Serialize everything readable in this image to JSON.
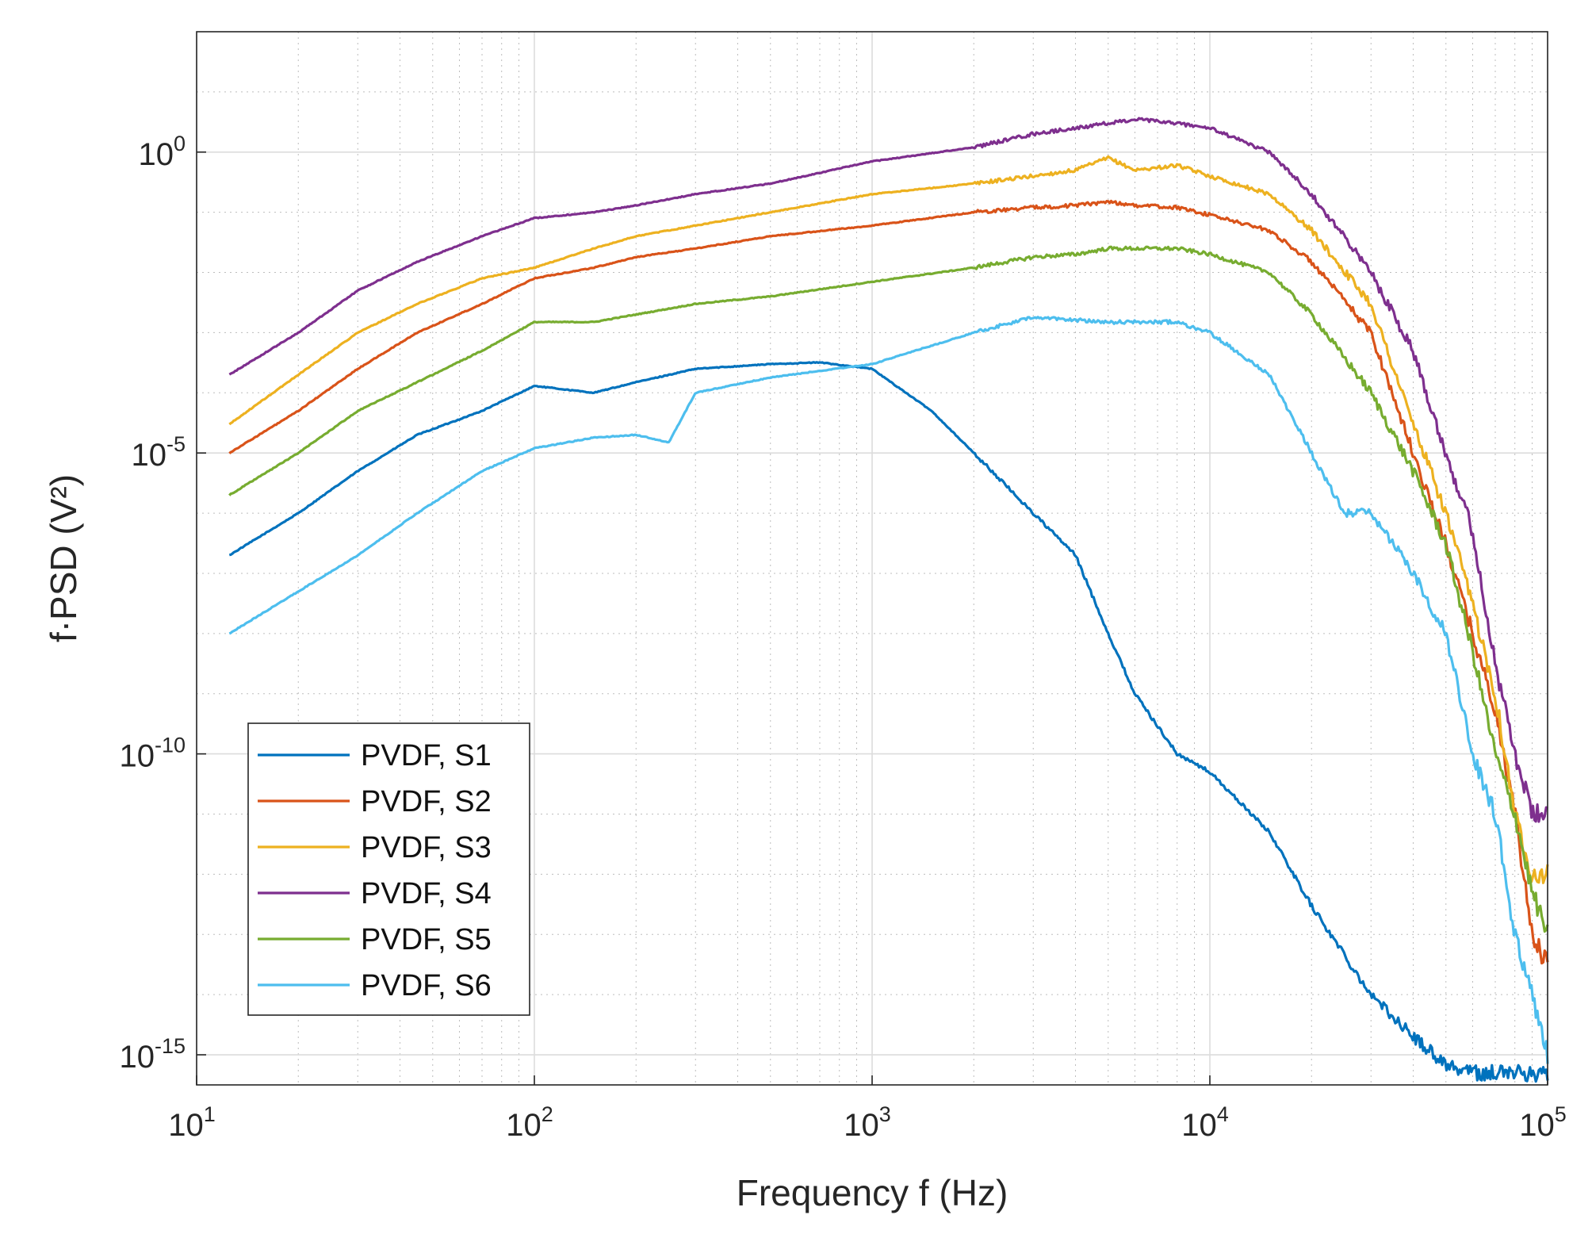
{
  "chart_data": {
    "type": "line",
    "title": "",
    "xlabel": "Frequency f (Hz)",
    "ylabel": "f·PSD (V²)",
    "x_scale": "log",
    "y_scale": "log",
    "xlim": [
      10,
      100000
    ],
    "ylim": [
      3.16e-16,
      100.0
    ],
    "x_ticks": [
      {
        "base": "10",
        "exp": "1"
      },
      {
        "base": "10",
        "exp": "2"
      },
      {
        "base": "10",
        "exp": "3"
      },
      {
        "base": "10",
        "exp": "4"
      },
      {
        "base": "10",
        "exp": "5"
      }
    ],
    "y_ticks": [
      {
        "base": "10",
        "exp": "-15"
      },
      {
        "base": "10",
        "exp": "-10"
      },
      {
        "base": "10",
        "exp": "-5"
      },
      {
        "base": "10",
        "exp": "0"
      }
    ],
    "x_tick_values": [
      10,
      100,
      1000,
      10000,
      100000
    ],
    "y_tick_values": [
      1e-15,
      1e-10,
      1e-05,
      1
    ],
    "grid": true,
    "minor_grid": true,
    "legend_position": "bottom-left",
    "series": [
      {
        "name": "PVDF, S1",
        "color": "#0072BD",
        "x": [
          12.5,
          20,
          30,
          45,
          70,
          100,
          150,
          200,
          300,
          500,
          700,
          1000,
          1500,
          2000,
          3000,
          4000,
          5000,
          6000,
          8000,
          10000,
          15000,
          20000,
          30000,
          40000,
          50000,
          60000,
          70000,
          80000,
          90000,
          100000
        ],
        "y": [
          2e-07,
          1e-06,
          5e-06,
          2e-05,
          5e-05,
          0.00013,
          0.0001,
          0.00015,
          0.00025,
          0.0003,
          0.00032,
          0.00025,
          5e-05,
          1e-05,
          1e-06,
          2e-07,
          1e-08,
          1e-09,
          1e-10,
          5e-11,
          5e-12,
          3e-13,
          1e-14,
          2e-15,
          7e-16,
          5e-16,
          5e-16,
          5e-16,
          5e-16,
          5e-16
        ]
      },
      {
        "name": "PVDF, S2",
        "color": "#D95319",
        "x": [
          12.5,
          20,
          30,
          45,
          70,
          100,
          150,
          200,
          300,
          500,
          1000,
          2000,
          3000,
          4000,
          5000,
          6000,
          8000,
          10000,
          15000,
          20000,
          30000,
          40000,
          50000,
          60000,
          70000,
          80000,
          90000,
          100000
        ],
        "y": [
          1e-05,
          5e-05,
          0.00025,
          0.001,
          0.003,
          0.008,
          0.012,
          0.018,
          0.025,
          0.04,
          0.06,
          0.1,
          0.12,
          0.13,
          0.15,
          0.13,
          0.12,
          0.09,
          0.05,
          0.015,
          0.001,
          1e-05,
          3e-07,
          1e-08,
          5e-10,
          1e-11,
          1e-13,
          3e-14
        ]
      },
      {
        "name": "PVDF, S3",
        "color": "#EDB120",
        "x": [
          12.5,
          20,
          30,
          45,
          70,
          100,
          150,
          200,
          300,
          500,
          1000,
          2000,
          3000,
          4000,
          5000,
          6000,
          8000,
          10000,
          15000,
          20000,
          30000,
          40000,
          50000,
          60000,
          70000,
          80000,
          90000,
          100000
        ],
        "y": [
          3e-05,
          0.0002,
          0.001,
          0.003,
          0.008,
          0.012,
          0.025,
          0.04,
          0.06,
          0.1,
          0.2,
          0.3,
          0.4,
          0.5,
          0.8,
          0.5,
          0.6,
          0.4,
          0.2,
          0.05,
          0.003,
          3e-05,
          1e-06,
          3e-08,
          1e-09,
          1e-11,
          1e-12,
          1e-12
        ]
      },
      {
        "name": "PVDF, S4",
        "color": "#7E2F8E",
        "x": [
          12.5,
          20,
          30,
          45,
          70,
          100,
          150,
          200,
          300,
          500,
          1000,
          2000,
          3000,
          4000,
          5000,
          6000,
          8000,
          10000,
          15000,
          20000,
          30000,
          40000,
          50000,
          60000,
          70000,
          80000,
          90000,
          100000
        ],
        "y": [
          0.0002,
          0.001,
          0.005,
          0.015,
          0.04,
          0.08,
          0.1,
          0.13,
          0.2,
          0.3,
          0.7,
          1.2,
          2,
          2.5,
          3,
          3.5,
          3,
          2.5,
          1,
          0.2,
          0.01,
          0.0005,
          1e-05,
          5e-07,
          3e-09,
          1e-10,
          1e-11,
          1e-11
        ]
      },
      {
        "name": "PVDF, S5",
        "color": "#77AC30",
        "x": [
          12.5,
          20,
          30,
          45,
          70,
          100,
          150,
          200,
          300,
          500,
          1000,
          2000,
          3000,
          4000,
          5000,
          6000,
          8000,
          10000,
          15000,
          20000,
          30000,
          40000,
          50000,
          60000,
          70000,
          80000,
          90000,
          100000
        ],
        "y": [
          2e-06,
          1e-05,
          5e-05,
          0.00015,
          0.0005,
          0.0015,
          0.0015,
          0.002,
          0.003,
          0.004,
          0.007,
          0.012,
          0.018,
          0.02,
          0.025,
          0.025,
          0.025,
          0.02,
          0.01,
          0.002,
          0.0001,
          5e-06,
          3e-07,
          5e-09,
          1e-10,
          1e-11,
          5e-13,
          1e-13
        ]
      },
      {
        "name": "PVDF, S6",
        "color": "#4DBEEE",
        "x": [
          12.5,
          20,
          30,
          45,
          70,
          100,
          150,
          200,
          250,
          300,
          500,
          1000,
          2000,
          3000,
          5000,
          8000,
          10000,
          15000,
          20000,
          25000,
          30000,
          40000,
          50000,
          60000,
          70000,
          80000,
          90000,
          100000
        ],
        "y": [
          1e-08,
          5e-08,
          2e-07,
          1e-06,
          5e-06,
          1.2e-05,
          1.8e-05,
          2e-05,
          1.5e-05,
          0.0001,
          0.00018,
          0.0003,
          0.001,
          0.0018,
          0.0015,
          0.0015,
          0.001,
          0.0002,
          1e-05,
          1e-06,
          1e-06,
          1e-07,
          1e-08,
          1e-10,
          1e-11,
          1e-13,
          1e-14,
          1e-15
        ]
      }
    ]
  }
}
